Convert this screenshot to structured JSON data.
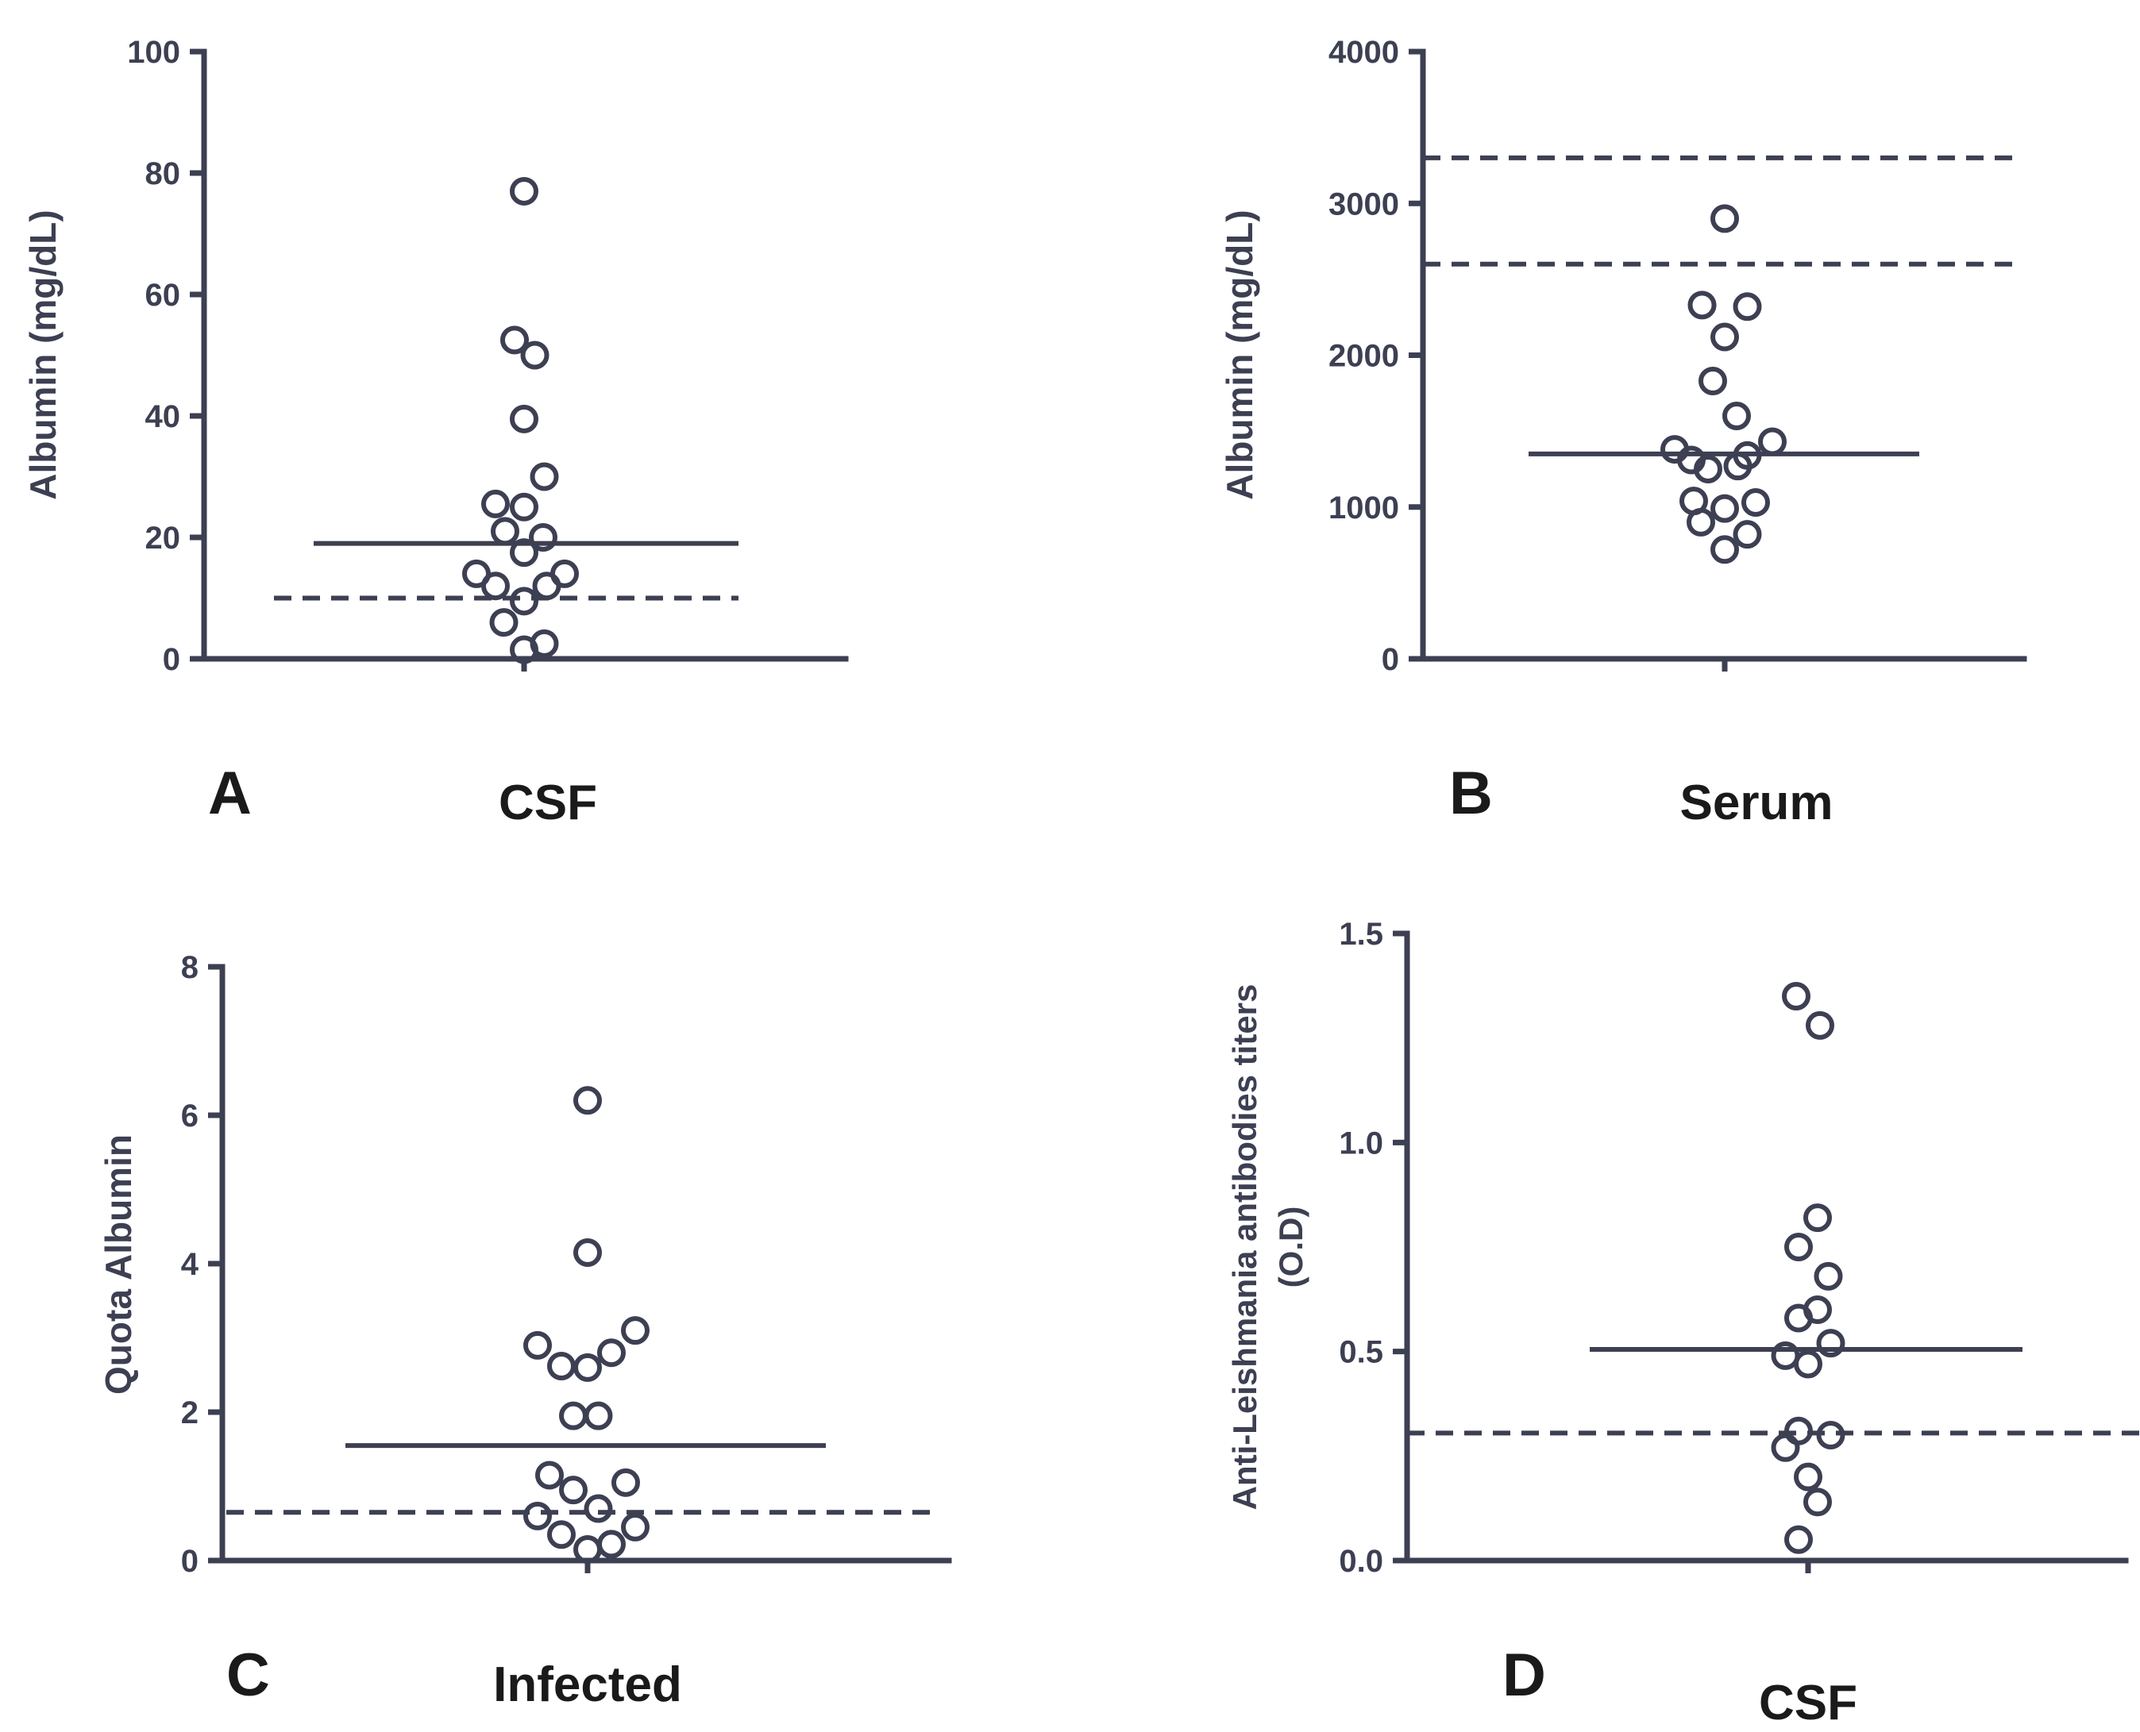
{
  "chart_data": [
    {
      "type": "scatter",
      "panel": "A",
      "group_label": "CSF",
      "ylabel": "Albumin   (mg/dL)",
      "ylim": [
        0,
        100
      ],
      "yticks": [
        {
          "v": 0,
          "t": "0"
        },
        {
          "v": 20,
          "t": "20"
        },
        {
          "v": 40,
          "t": "40"
        },
        {
          "v": 60,
          "t": "60"
        },
        {
          "v": 80,
          "t": "80"
        },
        {
          "v": 100,
          "t": "100"
        }
      ],
      "median": 19,
      "reference_line": 10,
      "points": [
        {
          "v": 77,
          "dx": 0
        },
        {
          "v": 52.5,
          "dx": -0.4
        },
        {
          "v": 50,
          "dx": 0.45
        },
        {
          "v": 39.5,
          "dx": 0
        },
        {
          "v": 30,
          "dx": 0.85
        },
        {
          "v": 25.5,
          "dx": -1.2
        },
        {
          "v": 25,
          "dx": 0
        },
        {
          "v": 21,
          "dx": -0.8
        },
        {
          "v": 20,
          "dx": 0.8
        },
        {
          "v": 17.5,
          "dx": 0
        },
        {
          "v": 14,
          "dx": -2.0
        },
        {
          "v": 14,
          "dx": 1.7
        },
        {
          "v": 12,
          "dx": -1.2
        },
        {
          "v": 12,
          "dx": 0.95
        },
        {
          "v": 9.5,
          "dx": 0
        },
        {
          "v": 6,
          "dx": -0.85
        },
        {
          "v": 2.5,
          "dx": 0.85
        },
        {
          "v": 1.5,
          "dx": 0
        }
      ]
    },
    {
      "type": "scatter",
      "panel": "B",
      "group_label": "Serum",
      "ylabel": "Albumin   (mg/dL)",
      "ylim": [
        0,
        4000
      ],
      "yticks": [
        {
          "v": 0,
          "t": "0"
        },
        {
          "v": 1000,
          "t": "1000"
        },
        {
          "v": 2000,
          "t": "2000"
        },
        {
          "v": 3000,
          "t": "3000"
        },
        {
          "v": 4000,
          "t": "4000"
        }
      ],
      "median": 1350,
      "reference_lines": [
        3300,
        2600
      ],
      "points": [
        {
          "v": 2900,
          "dx": 0
        },
        {
          "v": 2330,
          "dx": -0.95
        },
        {
          "v": 2320,
          "dx": 0.95
        },
        {
          "v": 2120,
          "dx": 0
        },
        {
          "v": 1830,
          "dx": -0.5
        },
        {
          "v": 1600,
          "dx": 0.5
        },
        {
          "v": 1430,
          "dx": 2.0
        },
        {
          "v": 1380,
          "dx": -2.1
        },
        {
          "v": 1340,
          "dx": 0.95
        },
        {
          "v": 1310,
          "dx": -1.4
        },
        {
          "v": 1270,
          "dx": 0.55
        },
        {
          "v": 1250,
          "dx": -0.7
        },
        {
          "v": 1040,
          "dx": -1.3
        },
        {
          "v": 1030,
          "dx": 1.3
        },
        {
          "v": 990,
          "dx": 0
        },
        {
          "v": 900,
          "dx": -1.0
        },
        {
          "v": 820,
          "dx": 0.95
        },
        {
          "v": 720,
          "dx": 0
        }
      ]
    },
    {
      "type": "scatter",
      "panel": "C",
      "group_label": "Infected",
      "ylabel": "Quota Albumin",
      "ylim": [
        0,
        8
      ],
      "yticks": [
        {
          "v": 0,
          "t": "0"
        },
        {
          "v": 2,
          "t": "2"
        },
        {
          "v": 4,
          "t": "4"
        },
        {
          "v": 6,
          "t": "6"
        },
        {
          "v": 8,
          "t": "8"
        }
      ],
      "median": 1.55,
      "reference_line": 0.65,
      "points": [
        {
          "v": 6.2,
          "dx": 0
        },
        {
          "v": 4.15,
          "dx": 0
        },
        {
          "v": 3.1,
          "dx": 2.0
        },
        {
          "v": 2.9,
          "dx": -2.1
        },
        {
          "v": 2.8,
          "dx": 1.0
        },
        {
          "v": 2.62,
          "dx": -1.1
        },
        {
          "v": 2.6,
          "dx": 0
        },
        {
          "v": 1.95,
          "dx": -0.6
        },
        {
          "v": 1.95,
          "dx": 0.45
        },
        {
          "v": 1.15,
          "dx": -1.6
        },
        {
          "v": 1.05,
          "dx": 1.6
        },
        {
          "v": 0.95,
          "dx": -0.6
        },
        {
          "v": 0.7,
          "dx": 0.45
        },
        {
          "v": 0.6,
          "dx": -2.1
        },
        {
          "v": 0.45,
          "dx": 2.0
        },
        {
          "v": 0.35,
          "dx": -1.1
        },
        {
          "v": 0.22,
          "dx": 1.0
        },
        {
          "v": 0.15,
          "dx": 0
        }
      ]
    },
    {
      "type": "scatter",
      "panel": "D",
      "group_label": "CSF",
      "ylabel_line1": "Anti-Leishmania antibodies titers",
      "ylabel_line2": "(O.D)",
      "ylim": [
        0,
        1.5
      ],
      "yticks": [
        {
          "v": 0,
          "t": "0.0"
        },
        {
          "v": 0.5,
          "t": "0.5"
        },
        {
          "v": 1.0,
          "t": "1.0"
        },
        {
          "v": 1.5,
          "t": "1.5"
        }
      ],
      "median": 0.505,
      "reference_line": 0.305,
      "points": [
        {
          "v": 1.35,
          "dx": -0.5
        },
        {
          "v": 1.28,
          "dx": 0.5
        },
        {
          "v": 0.82,
          "dx": 0.4
        },
        {
          "v": 0.75,
          "dx": -0.4
        },
        {
          "v": 0.68,
          "dx": 0.85
        },
        {
          "v": 0.6,
          "dx": 0.4
        },
        {
          "v": 0.58,
          "dx": -0.4
        },
        {
          "v": 0.52,
          "dx": 0.95
        },
        {
          "v": 0.49,
          "dx": -0.95
        },
        {
          "v": 0.47,
          "dx": 0
        },
        {
          "v": 0.31,
          "dx": -0.4
        },
        {
          "v": 0.3,
          "dx": 0.95
        },
        {
          "v": 0.27,
          "dx": -0.95
        },
        {
          "v": 0.2,
          "dx": 0
        },
        {
          "v": 0.14,
          "dx": 0.4
        },
        {
          "v": 0.05,
          "dx": -0.4
        }
      ]
    }
  ]
}
